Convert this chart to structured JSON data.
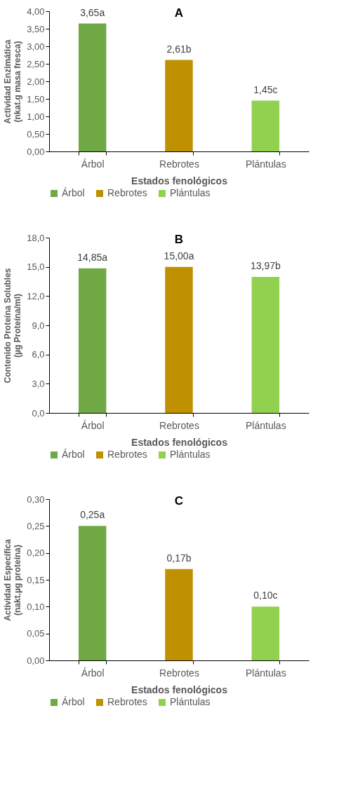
{
  "chart_data": [
    {
      "type": "bar",
      "title": "A",
      "xlabel": "Estados fenológicos",
      "ylabel": "Actividad Enzimática\n(nkat.g masa fresca)",
      "categories": [
        "Árbol",
        "Rebrotes",
        "Plántulas"
      ],
      "stacked": true,
      "series": [
        {
          "name": "Árbol",
          "color": "#70a845",
          "values": [
            3.65,
            null,
            null
          ],
          "value_labels": [
            "3,65a",
            null,
            null
          ]
        },
        {
          "name": "Rebrotes",
          "color": "#bf9000",
          "values": [
            null,
            2.61,
            null
          ],
          "value_labels": [
            null,
            "2,61b",
            null
          ]
        },
        {
          "name": "Plántulas",
          "color": "#92d050",
          "values": [
            null,
            null,
            1.45
          ],
          "value_labels": [
            null,
            null,
            "1,45c"
          ]
        }
      ],
      "ylim": [
        0,
        4
      ],
      "yticks": [
        {
          "value": 0,
          "label": "0,00"
        },
        {
          "value": 0.5,
          "label": "0,50"
        },
        {
          "value": 1,
          "label": "1,00"
        },
        {
          "value": 1.5,
          "label": "1,50"
        },
        {
          "value": 2,
          "label": "2,00"
        },
        {
          "value": 2.5,
          "label": "2,50"
        },
        {
          "value": 3,
          "label": "3,00"
        },
        {
          "value": 3.5,
          "label": "3,50"
        },
        {
          "value": 4,
          "label": "4,00"
        }
      ],
      "legend": "bottom"
    },
    {
      "type": "bar",
      "title": "B",
      "xlabel": "Estados fenológicos",
      "ylabel": "Contenido Proteína Solubles\n(µg Proteína/ml)",
      "categories": [
        "Árbol",
        "Rebrotes",
        "Plántulas"
      ],
      "stacked": true,
      "series": [
        {
          "name": "Árbol",
          "color": "#70a845",
          "values": [
            14.85,
            null,
            null
          ],
          "value_labels": [
            "14,85a",
            null,
            null
          ]
        },
        {
          "name": "Rebrotes",
          "color": "#bf9000",
          "values": [
            null,
            15.0,
            null
          ],
          "value_labels": [
            null,
            "15,00a",
            null
          ]
        },
        {
          "name": "Plántulas",
          "color": "#92d050",
          "values": [
            null,
            null,
            13.97
          ],
          "value_labels": [
            null,
            null,
            "13,97b"
          ]
        }
      ],
      "ylim": [
        0,
        18
      ],
      "yticks": [
        {
          "value": 0,
          "label": "0,0"
        },
        {
          "value": 3,
          "label": "3,0"
        },
        {
          "value": 6,
          "label": "6,0"
        },
        {
          "value": 9,
          "label": "9,0"
        },
        {
          "value": 12,
          "label": "12,0"
        },
        {
          "value": 15,
          "label": "15,0"
        },
        {
          "value": 18,
          "label": "18,0"
        }
      ],
      "legend": "bottom"
    },
    {
      "type": "bar",
      "title": "C",
      "xlabel": "Estados fenológicos",
      "ylabel": "Actividad Específica\n(nakt.µg  proteína)",
      "categories": [
        "Árbol",
        "Rebrotes",
        "Plántulas"
      ],
      "stacked": true,
      "series": [
        {
          "name": "Árbol",
          "color": "#70a845",
          "values": [
            0.25,
            null,
            null
          ],
          "value_labels": [
            "0,25a",
            null,
            null
          ]
        },
        {
          "name": "Rebrotes",
          "color": "#bf9000",
          "values": [
            null,
            0.17,
            null
          ],
          "value_labels": [
            null,
            "0,17b",
            null
          ]
        },
        {
          "name": "Plántulas",
          "color": "#92d050",
          "values": [
            null,
            null,
            0.1
          ],
          "value_labels": [
            null,
            null,
            "0,10c"
          ]
        }
      ],
      "ylim": [
        0,
        0.3
      ],
      "yticks": [
        {
          "value": 0,
          "label": "0,00"
        },
        {
          "value": 0.05,
          "label": "0,05"
        },
        {
          "value": 0.1,
          "label": "0,10"
        },
        {
          "value": 0.15,
          "label": "0,15"
        },
        {
          "value": 0.2,
          "label": "0,20"
        },
        {
          "value": 0.25,
          "label": "0,25"
        },
        {
          "value": 0.3,
          "label": "0,30"
        }
      ],
      "legend": "bottom"
    }
  ]
}
